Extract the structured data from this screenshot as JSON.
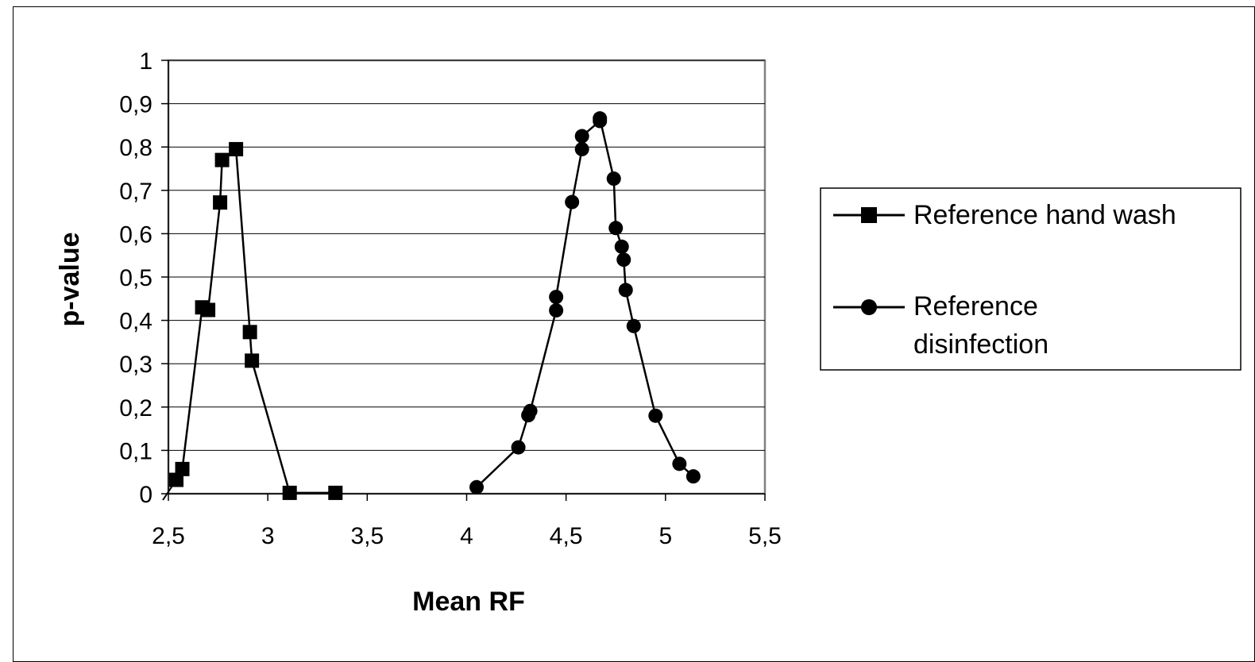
{
  "chart_data": {
    "type": "line",
    "title": "",
    "xlabel": "Mean RF",
    "ylabel": "p-value",
    "xlim": [
      2.5,
      5.5
    ],
    "ylim": [
      0,
      1
    ],
    "x_ticks": [
      "2,5",
      "3",
      "3,5",
      "4",
      "4,5",
      "5",
      "5,5"
    ],
    "x_tick_values": [
      2.5,
      3,
      3.5,
      4,
      4.5,
      5,
      5.5
    ],
    "y_ticks": [
      "0",
      "0,1",
      "0,2",
      "0,3",
      "0,4",
      "0,5",
      "0,6",
      "0,7",
      "0,8",
      "0,9",
      "1"
    ],
    "y_tick_values": [
      0,
      0.1,
      0.2,
      0.3,
      0.4,
      0.5,
      0.6,
      0.7,
      0.8,
      0.9,
      1
    ],
    "grid": "horizontal",
    "legend_position": "right",
    "series": [
      {
        "name": "Reference hand wash",
        "marker": "square",
        "color": "#000000",
        "x": [
          2.54,
          2.57,
          2.67,
          2.7,
          2.76,
          2.77,
          2.84,
          2.91,
          2.92,
          3.11,
          3.34
        ],
        "y": [
          0.032,
          0.057,
          0.43,
          0.424,
          0.672,
          0.77,
          0.795,
          0.373,
          0.307,
          0.002,
          0.002
        ]
      },
      {
        "name": "Reference disinfection",
        "legend_lines": [
          "Reference",
          "disinfection"
        ],
        "marker": "circle",
        "color": "#000000",
        "x": [
          4.05,
          4.26,
          4.31,
          4.32,
          4.45,
          4.45,
          4.53,
          4.58,
          4.58,
          4.67,
          4.67,
          4.74,
          4.75,
          4.78,
          4.79,
          4.8,
          4.84,
          4.95,
          5.07,
          5.14
        ],
        "y": [
          0.015,
          0.107,
          0.181,
          0.191,
          0.423,
          0.454,
          0.673,
          0.795,
          0.825,
          0.86,
          0.866,
          0.727,
          0.613,
          0.57,
          0.54,
          0.47,
          0.387,
          0.18,
          0.069,
          0.04
        ]
      }
    ]
  }
}
